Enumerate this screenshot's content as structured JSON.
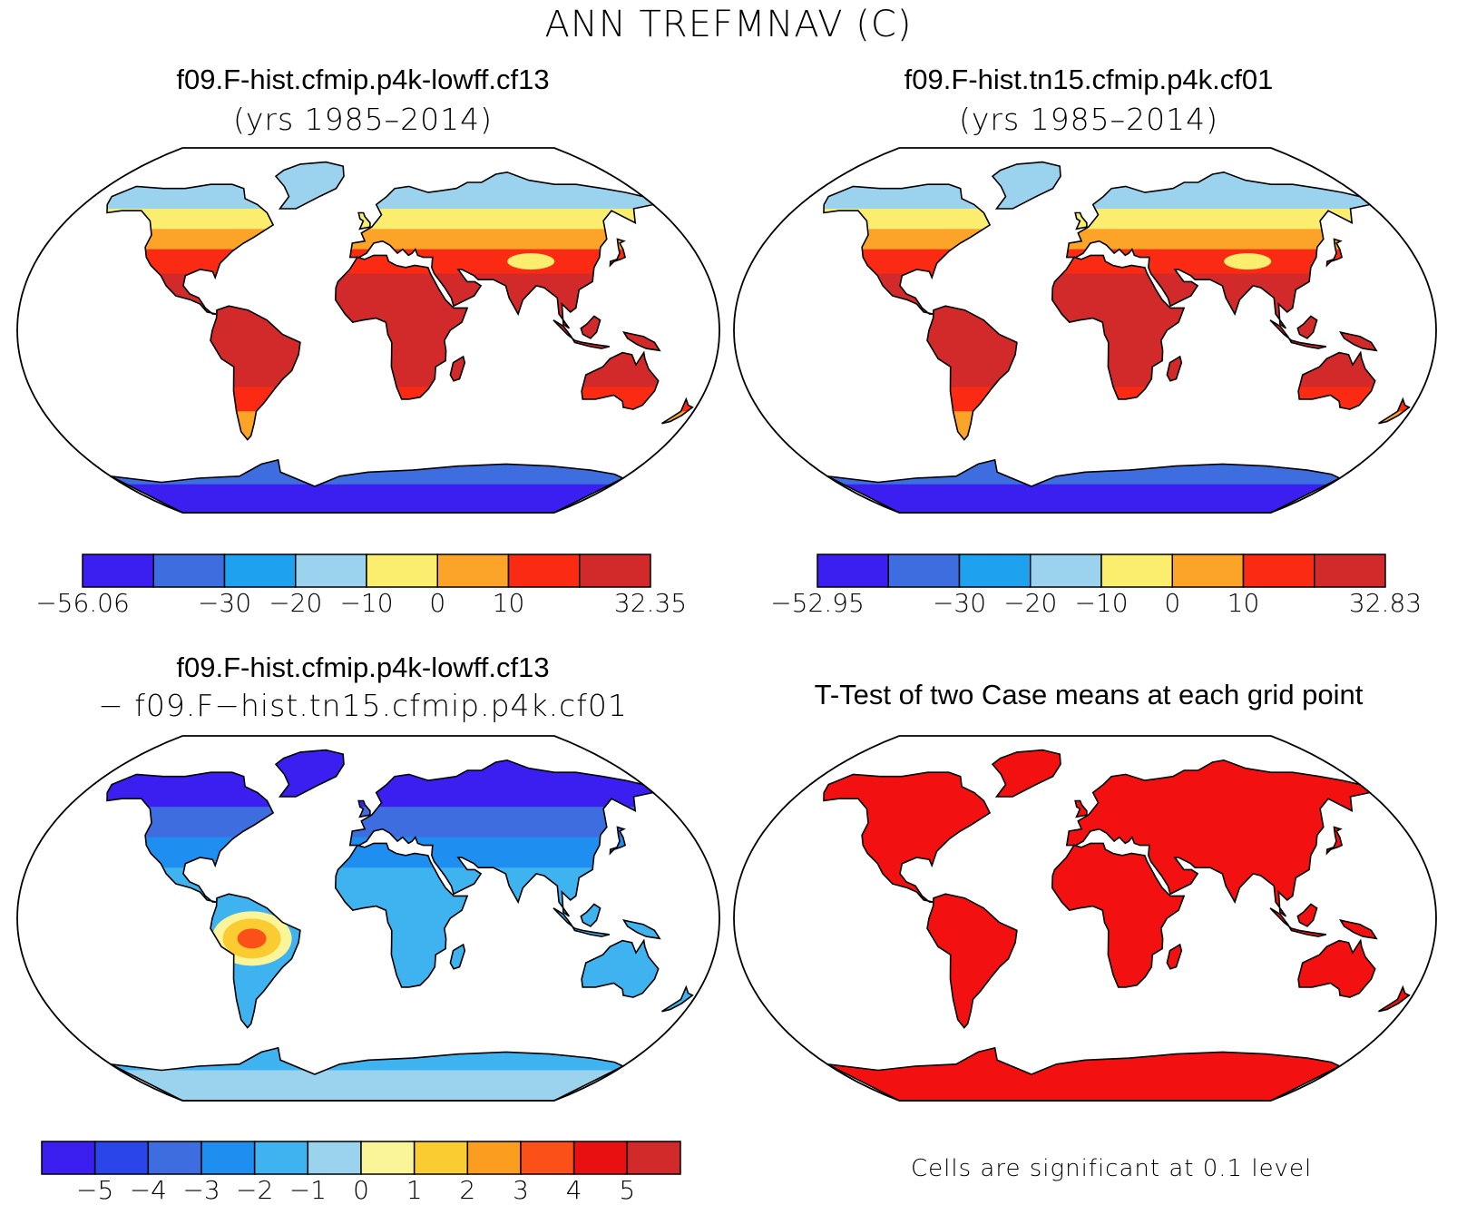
{
  "title": "ANN TREFMNAV (C)",
  "panels": [
    {
      "id": "case1",
      "title": "f09.F-hist.cfmip.p4k-lowff.cf13",
      "subtitle": "(yrs 1985–2014)",
      "colorbar": {
        "colors": [
          "#3a1ff0",
          "#3e6de0",
          "#1ea2f0",
          "#9bd3ef",
          "#fbee6e",
          "#fba428",
          "#fb2a12",
          "#d22a2a"
        ],
        "labels": [
          "−56.06",
          "−30",
          "−20",
          "−10",
          "0",
          "10",
          "32.35"
        ]
      }
    },
    {
      "id": "case2",
      "title": "f09.F-hist.tn15.cfmip.p4k.cf01",
      "subtitle": "(yrs 1985–2014)",
      "colorbar": {
        "colors": [
          "#3a1ff0",
          "#3e6de0",
          "#1ea2f0",
          "#9bd3ef",
          "#fbee6e",
          "#fba428",
          "#fb2a12",
          "#d22a2a"
        ],
        "labels": [
          "−52.95",
          "−30",
          "−20",
          "−10",
          "0",
          "10",
          "32.83"
        ]
      }
    },
    {
      "id": "diff",
      "title": "f09.F-hist.cfmip.p4k-lowff.cf13",
      "subtitle": "− f09.F−hist.tn15.cfmip.p4k.cf01",
      "colorbar": {
        "colors": [
          "#3a1ff0",
          "#2a45ea",
          "#3e6de0",
          "#1e8ff0",
          "#3fb2f0",
          "#9bd3ef",
          "#fbf59a",
          "#fbcc32",
          "#fb9d1e",
          "#fb5018",
          "#e81010",
          "#d22a2a"
        ],
        "labels": [
          "−5",
          "−4",
          "−3",
          "−2",
          "−1",
          "0",
          "1",
          "2",
          "3",
          "4",
          "5"
        ]
      }
    },
    {
      "id": "ttest",
      "title": "T-Test of two Case means at each grid point",
      "note": "Cells are significant at 0.1 level",
      "fill": "#f21010"
    }
  ]
}
